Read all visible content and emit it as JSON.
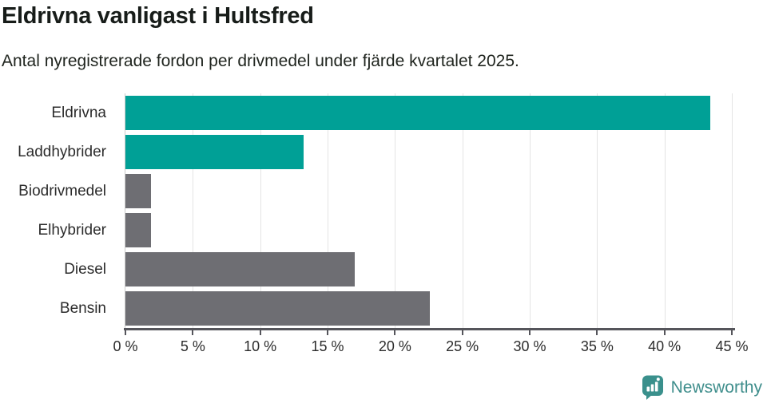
{
  "header": {
    "title": "Eldrivna vanligast i Hultsfred",
    "subtitle": "Antal nyregistrerade fordon per drivmedel under fjärde kvartalet 2025."
  },
  "chart_data": {
    "type": "bar",
    "orientation": "horizontal",
    "title": "Eldrivna vanligast i Hultsfred",
    "subtitle": "Antal nyregistrerade fordon per drivmedel under fjärde kvartalet 2025.",
    "categories": [
      "Eldrivna",
      "Laddhybrider",
      "Biodrivmedel",
      "Elhybrider",
      "Diesel",
      "Bensin"
    ],
    "values": [
      43.4,
      13.2,
      1.9,
      1.9,
      17.0,
      22.6
    ],
    "unit": "%",
    "bar_colors": [
      "#00a096",
      "#00a096",
      "#6e6e73",
      "#6e6e73",
      "#6e6e73",
      "#6e6e73"
    ],
    "highlight_color": "#00a096",
    "default_color": "#6e6e73",
    "xlabel": "",
    "ylabel": "",
    "xlim": [
      0,
      45
    ],
    "x_ticks": [
      0,
      5,
      10,
      15,
      20,
      25,
      30,
      35,
      40,
      45
    ],
    "x_tick_suffix": " %",
    "grid": "vertical gridlines at each x tick",
    "legend": "none"
  },
  "footer": {
    "brand": "Newsworthy",
    "brand_color": "#3f8e8c",
    "logo_icon": "newsworthy-speech-bubble-bar-chart-icon",
    "logo_color": "#3a908c"
  }
}
